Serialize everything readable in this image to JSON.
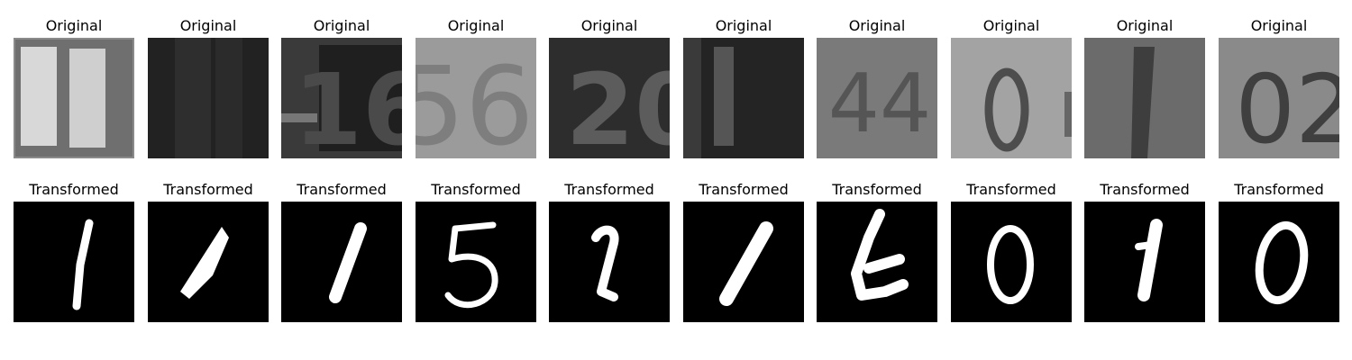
{
  "row_original": {
    "caption": "Original",
    "images": [
      {
        "kind": "svhn",
        "content": "11"
      },
      {
        "kind": "svhn",
        "content": ""
      },
      {
        "kind": "svhn",
        "content": "16"
      },
      {
        "kind": "svhn",
        "content": "56"
      },
      {
        "kind": "svhn",
        "content": "20"
      },
      {
        "kind": "svhn",
        "content": "01"
      },
      {
        "kind": "svhn",
        "content": "44"
      },
      {
        "kind": "svhn",
        "content": "0"
      },
      {
        "kind": "svhn",
        "content": "1"
      },
      {
        "kind": "svhn",
        "content": "02"
      }
    ]
  },
  "row_transformed": {
    "caption": "Transformed",
    "images": [
      {
        "kind": "mnist-like",
        "digit": "1"
      },
      {
        "kind": "mnist-like",
        "digit": "1"
      },
      {
        "kind": "mnist-like",
        "digit": "1"
      },
      {
        "kind": "mnist-like",
        "digit": "5"
      },
      {
        "kind": "mnist-like",
        "digit": "2"
      },
      {
        "kind": "mnist-like",
        "digit": "1"
      },
      {
        "kind": "mnist-like",
        "digit": "6"
      },
      {
        "kind": "mnist-like",
        "digit": "0"
      },
      {
        "kind": "mnist-like",
        "digit": "1"
      },
      {
        "kind": "mnist-like",
        "digit": "0"
      }
    ]
  },
  "colors": {
    "background": "#ffffff",
    "caption_text": "#000000",
    "transformed_bg": "#000000",
    "transformed_stroke": "#ffffff"
  }
}
